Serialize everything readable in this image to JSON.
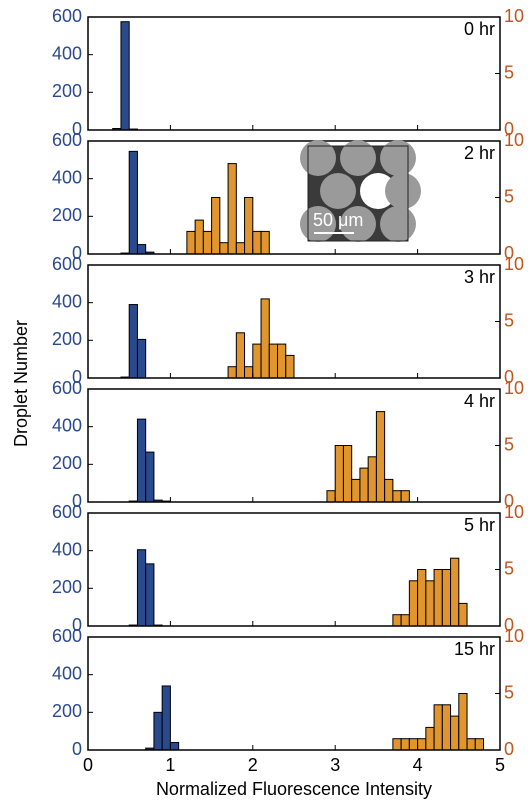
{
  "chart_data": [
    {
      "type": "histogram",
      "label": "0 hr",
      "ylabel": "Droplet Number",
      "xlim": [
        0,
        5
      ],
      "xticks": [
        0,
        1,
        2,
        3,
        4,
        5
      ],
      "ylim": [
        0,
        600
      ],
      "yticks": [
        0,
        200,
        400,
        600
      ],
      "y2lim": [
        0,
        10
      ],
      "y2ticks": [
        0,
        5,
        10
      ],
      "series": [
        {
          "color": "#2b4a8e",
          "bins": [
            0.3,
            0.4,
            0.5,
            0.6
          ],
          "values": [
            8,
            575,
            5
          ]
        }
      ]
    },
    {
      "type": "histogram",
      "label": "2 hr",
      "inset_label": "50 μm",
      "xlim": [
        0,
        5
      ],
      "xticks": [
        0,
        1,
        2,
        3,
        4,
        5
      ],
      "ylim": [
        0,
        600
      ],
      "yticks": [
        0,
        200,
        400,
        600
      ],
      "y2lim": [
        0,
        10
      ],
      "y2ticks": [
        0,
        5,
        10
      ],
      "series": [
        {
          "color": "#2b4a8e",
          "bins": [
            0.4,
            0.5,
            0.6,
            0.7,
            0.8
          ],
          "values": [
            5,
            545,
            50,
            10
          ]
        },
        {
          "color": "#e0952f",
          "axis": "y2",
          "bins": [
            1.2,
            1.3,
            1.4,
            1.5,
            1.6,
            1.7,
            1.8,
            1.9,
            2.0,
            2.1,
            2.2
          ],
          "values": [
            2,
            3,
            2,
            5,
            1,
            8,
            1,
            5,
            2,
            2
          ]
        }
      ]
    },
    {
      "type": "histogram",
      "label": "3 hr",
      "xlim": [
        0,
        5
      ],
      "xticks": [
        0,
        1,
        2,
        3,
        4,
        5
      ],
      "ylim": [
        0,
        600
      ],
      "yticks": [
        0,
        200,
        400,
        600
      ],
      "y2lim": [
        0,
        10
      ],
      "y2ticks": [
        0,
        5,
        10
      ],
      "series": [
        {
          "color": "#2b4a8e",
          "bins": [
            0.4,
            0.5,
            0.6,
            0.7
          ],
          "values": [
            5,
            390,
            205
          ]
        },
        {
          "color": "#e0952f",
          "axis": "y2",
          "bins": [
            1.7,
            1.8,
            1.9,
            2.0,
            2.1,
            2.2,
            2.3,
            2.4,
            2.5
          ],
          "values": [
            1,
            4,
            1,
            3,
            7,
            3,
            3,
            2
          ]
        }
      ]
    },
    {
      "type": "histogram",
      "label": "4 hr",
      "xlim": [
        0,
        5
      ],
      "xticks": [
        0,
        1,
        2,
        3,
        4,
        5
      ],
      "ylim": [
        0,
        600
      ],
      "yticks": [
        0,
        200,
        400,
        600
      ],
      "y2lim": [
        0,
        10
      ],
      "y2ticks": [
        0,
        5,
        10
      ],
      "series": [
        {
          "color": "#2b4a8e",
          "bins": [
            0.5,
            0.6,
            0.7,
            0.8,
            0.9,
            1.0
          ],
          "values": [
            5,
            440,
            265,
            10,
            5
          ]
        },
        {
          "color": "#e0952f",
          "axis": "y2",
          "bins": [
            2.9,
            3.0,
            3.1,
            3.2,
            3.3,
            3.4,
            3.5,
            3.6,
            3.7,
            3.8,
            3.9
          ],
          "values": [
            1,
            5,
            5,
            2,
            3,
            4,
            8,
            2,
            1,
            1
          ]
        }
      ]
    },
    {
      "type": "histogram",
      "label": "5 hr",
      "xlim": [
        0,
        5
      ],
      "xticks": [
        0,
        1,
        2,
        3,
        4,
        5
      ],
      "ylim": [
        0,
        600
      ],
      "yticks": [
        0,
        200,
        400,
        600
      ],
      "y2lim": [
        0,
        10
      ],
      "y2ticks": [
        0,
        5,
        10
      ],
      "series": [
        {
          "color": "#2b4a8e",
          "bins": [
            0.5,
            0.6,
            0.7,
            0.8,
            0.9
          ],
          "values": [
            5,
            405,
            330,
            5
          ]
        },
        {
          "color": "#e0952f",
          "axis": "y2",
          "bins": [
            3.7,
            3.8,
            3.9,
            4.0,
            4.1,
            4.2,
            4.3,
            4.4,
            4.5,
            4.6
          ],
          "values": [
            1,
            1,
            4,
            5,
            4,
            5,
            5,
            6,
            2
          ]
        }
      ]
    },
    {
      "type": "histogram",
      "label": "15 hr",
      "xlabel": "Normalized Fluorescence Intensity",
      "xlim": [
        0,
        5
      ],
      "xticks": [
        0,
        1,
        2,
        3,
        4,
        5
      ],
      "ylim": [
        0,
        600
      ],
      "yticks": [
        0,
        200,
        400,
        600
      ],
      "y2lim": [
        0,
        10
      ],
      "y2ticks": [
        0,
        5,
        10
      ],
      "series": [
        {
          "color": "#2b4a8e",
          "bins": [
            0.7,
            0.8,
            0.9,
            1.0,
            1.1
          ],
          "values": [
            10,
            200,
            340,
            40
          ]
        },
        {
          "color": "#e0952f",
          "axis": "y2",
          "bins": [
            3.7,
            3.8,
            3.9,
            4.0,
            4.1,
            4.2,
            4.3,
            4.4,
            4.5,
            4.6,
            4.7,
            4.8
          ],
          "values": [
            1,
            1,
            1,
            1,
            2,
            4,
            4,
            3,
            5,
            1,
            1
          ]
        }
      ]
    }
  ]
}
